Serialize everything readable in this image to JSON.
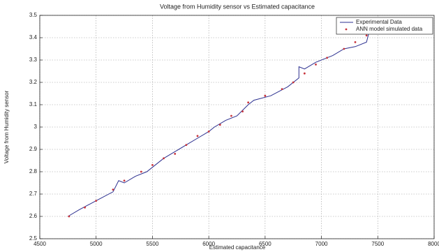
{
  "chart_data": {
    "type": "line",
    "title": "Voltage from Humidity sensor vs Estimated capacitance",
    "x_label": "Estimated capacitance",
    "y_label": "Voltage from Humidity sensor",
    "xlim": [
      4500,
      8000
    ],
    "xticks": [
      4500,
      5000,
      5500,
      6000,
      6500,
      7000,
      7500,
      8000
    ],
    "ylim": [
      2.5,
      3.5
    ],
    "yticks": [
      2.5,
      2.6,
      2.7,
      2.8,
      2.9,
      3,
      3.1,
      3.2,
      3.3,
      3.4,
      3.5
    ],
    "grid": true,
    "legend": "upper-right",
    "series": [
      {
        "name": "Experimental Data",
        "color": "#2b2f8f",
        "style": "line",
        "x": [
          4750,
          4850,
          5000,
          5150,
          5200,
          5250,
          5350,
          5450,
          5550,
          5600,
          5700,
          5800,
          5900,
          6000,
          6050,
          6150,
          6250,
          6350,
          6400,
          6550,
          6700,
          6800,
          6800,
          6850,
          6950,
          7100,
          7200,
          7300,
          7400,
          7420
        ],
        "values": [
          2.6,
          2.63,
          2.67,
          2.71,
          2.76,
          2.75,
          2.78,
          2.8,
          2.84,
          2.86,
          2.89,
          2.92,
          2.95,
          2.98,
          3.0,
          3.03,
          3.05,
          3.1,
          3.12,
          3.14,
          3.18,
          3.22,
          3.27,
          3.26,
          3.29,
          3.32,
          3.35,
          3.36,
          3.38,
          3.42
        ]
      },
      {
        "name": "ANN model simulated data",
        "color": "#c8323a",
        "style": "marker",
        "x": [
          4760,
          4900,
          5000,
          5150,
          5250,
          5400,
          5500,
          5600,
          5700,
          5800,
          5900,
          6000,
          6100,
          6200,
          6300,
          6350,
          6500,
          6650,
          6750,
          6850,
          6950,
          7050,
          7200,
          7300,
          7400
        ],
        "values": [
          2.6,
          2.64,
          2.67,
          2.72,
          2.76,
          2.8,
          2.83,
          2.86,
          2.88,
          2.92,
          2.96,
          2.98,
          3.01,
          3.05,
          3.07,
          3.11,
          3.14,
          3.17,
          3.2,
          3.24,
          3.28,
          3.31,
          3.35,
          3.38,
          3.41
        ]
      }
    ]
  }
}
